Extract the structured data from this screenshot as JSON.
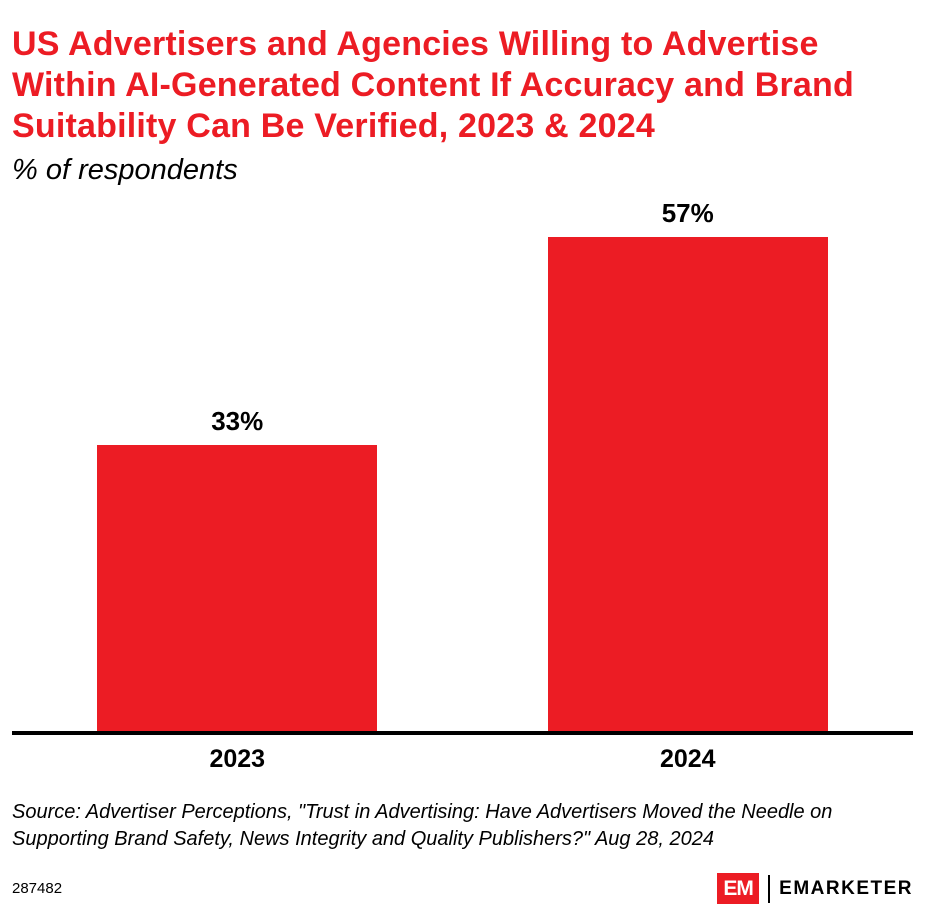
{
  "header": {
    "title": "US Advertisers and Agencies Willing to Advertise Within AI-Generated Content If Accuracy and Brand Suitability Can Be Verified, 2023 & 2024",
    "subtitle": "% of respondents"
  },
  "chart_data": {
    "type": "bar",
    "categories": [
      "2023",
      "2024"
    ],
    "values": [
      33,
      57
    ],
    "value_labels": [
      "33%",
      "57%"
    ],
    "title": "US Advertisers and Agencies Willing to Advertise Within AI-Generated Content If Accuracy and Brand Suitability Can Be Verified, 2023 & 2024",
    "xlabel": "",
    "ylabel": "% of respondents",
    "ylim": [
      0,
      60
    ],
    "grid": false,
    "legend": "none",
    "bar_color": "#EC1C24"
  },
  "footer": {
    "source": "Source: Advertiser Perceptions, \"Trust in Advertising: Have Advertisers Moved the Needle on Supporting Brand Safety, News Integrity and Quality Publishers?\" Aug 28, 2024",
    "chart_id": "287482",
    "logo_monogram": "EM",
    "brand_name": "EMARKETER"
  },
  "colors": {
    "accent_red": "#EC1C24",
    "text_black": "#000000",
    "background": "#FFFFFF"
  }
}
